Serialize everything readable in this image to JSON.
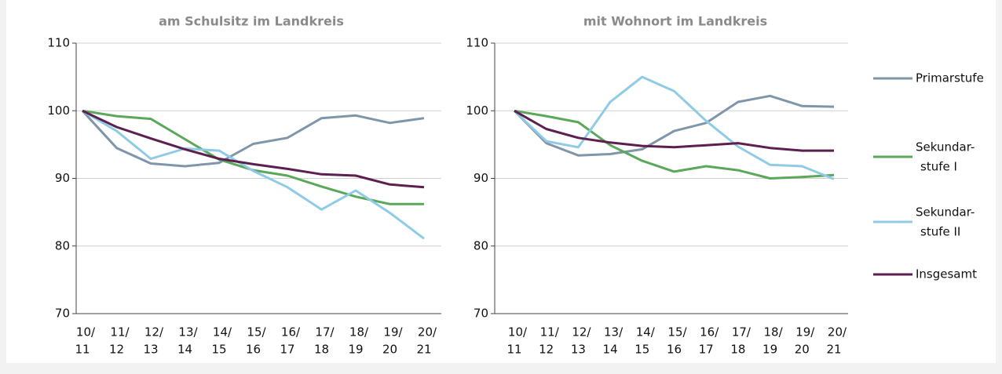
{
  "chart_data": [
    {
      "type": "line",
      "title": "am Schulsitz im Landkreis",
      "categories": [
        [
          "10/",
          "11"
        ],
        [
          "11/",
          "12"
        ],
        [
          "12/",
          "13"
        ],
        [
          "13/",
          "14"
        ],
        [
          "14/",
          "15"
        ],
        [
          "15/",
          "16"
        ],
        [
          "16/",
          "17"
        ],
        [
          "17/",
          "18"
        ],
        [
          "18/",
          "19"
        ],
        [
          "19/",
          "20"
        ],
        [
          "20/",
          "21"
        ]
      ],
      "ylim": [
        70,
        110
      ],
      "yticks": [
        70,
        80,
        90,
        100,
        110
      ],
      "grid": true,
      "series": [
        {
          "color": "#7f96aa",
          "values": [
            100,
            94.5,
            92.2,
            91.8,
            92.3,
            95.1,
            96,
            98.9,
            99.3,
            98.2,
            98.9
          ]
        },
        {
          "color": "#5aa85a",
          "values": [
            100,
            99.2,
            98.8,
            95.8,
            92.8,
            91.2,
            90.4,
            88.8,
            87.3,
            86.2,
            86.2
          ]
        },
        {
          "color": "#8fcbe4",
          "values": [
            100,
            97,
            92.9,
            94.4,
            94.1,
            91.1,
            88.7,
            85.4,
            88.2,
            84.9,
            81.1
          ]
        },
        {
          "color": "#5c1f50",
          "values": [
            100,
            97.6,
            95.9,
            94.3,
            92.9,
            92.1,
            91.4,
            90.6,
            90.4,
            89.1,
            88.7
          ]
        }
      ]
    },
    {
      "type": "line",
      "title": "mit Wohnort im Landkreis",
      "categories": [
        [
          "10/",
          "11"
        ],
        [
          "11/",
          "12"
        ],
        [
          "12/",
          "13"
        ],
        [
          "13/",
          "14"
        ],
        [
          "14/",
          "15"
        ],
        [
          "15/",
          "16"
        ],
        [
          "16/",
          "17"
        ],
        [
          "17/",
          "18"
        ],
        [
          "18/",
          "19"
        ],
        [
          "19/",
          "20"
        ],
        [
          "20/",
          "21"
        ]
      ],
      "ylim": [
        70,
        110
      ],
      "yticks": [
        70,
        80,
        90,
        100,
        110
      ],
      "grid": true,
      "legend": "right",
      "series": [
        {
          "name": "Primarstufe",
          "color": "#7f96aa",
          "values": [
            100,
            95.2,
            93.4,
            93.6,
            94.3,
            97,
            98.2,
            101.3,
            102.2,
            100.7,
            100.6
          ]
        },
        {
          "name": [
            "Sekundar-",
            "stufe I"
          ],
          "color": "#5aa85a",
          "values": [
            100,
            99.2,
            98.3,
            94.9,
            92.6,
            91,
            91.8,
            91.2,
            90,
            90.2,
            90.5
          ]
        },
        {
          "name": [
            "Sekundar-",
            "stufe II"
          ],
          "color": "#8fcbe4",
          "values": [
            100,
            95.5,
            94.6,
            101.3,
            105,
            102.9,
            98.5,
            94.7,
            92,
            91.8,
            89.9
          ]
        },
        {
          "name": "Insgesamt",
          "color": "#5c1f50",
          "values": [
            100,
            97.3,
            96,
            95.3,
            94.8,
            94.6,
            94.9,
            95.2,
            94.5,
            94.1,
            94.1
          ]
        }
      ]
    }
  ]
}
